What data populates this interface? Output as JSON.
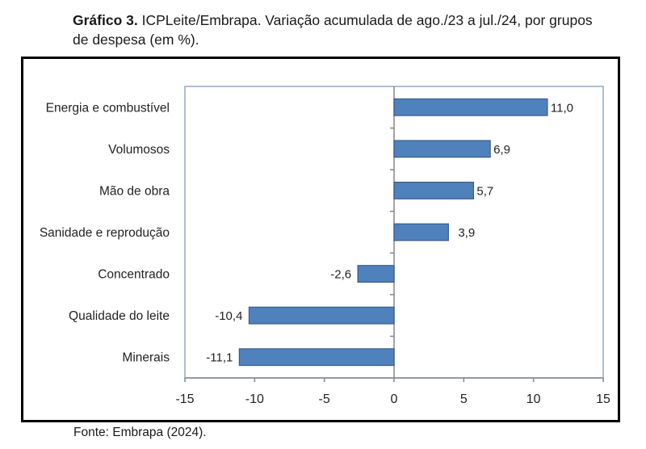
{
  "caption": {
    "bold": "Gráfico 3.",
    "text": " ICPLeite/Embrapa. Variação acumulada de ago./23 a jul./24, por grupos de despesa (em %)."
  },
  "source": "Fonte: Embrapa (2024).",
  "chart_data": {
    "type": "bar",
    "orientation": "horizontal",
    "title": "ICPLeite/Embrapa. Variação acumulada de ago./23 a jul./24, por grupos de despesa (em %)",
    "xlabel": "",
    "ylabel": "",
    "categories": [
      "Energia e combustível",
      "Volumosos",
      "Mão de obra",
      "Sanidade e reprodução",
      "Concentrado",
      "Qualidade do leite",
      "Minerais"
    ],
    "values": [
      11.0,
      6.9,
      5.7,
      3.9,
      -2.6,
      -10.4,
      -11.1
    ],
    "data_labels": [
      "11,0",
      "6,9",
      "5,7",
      "3,9",
      "-2,6",
      "-10,4",
      "-11,1"
    ],
    "xlim": [
      -15,
      15
    ],
    "xticks": [
      -15,
      -10,
      -5,
      0,
      5,
      10,
      15
    ],
    "xtick_labels": [
      "-15",
      "-10",
      "-5",
      "0",
      "5",
      "10",
      "15"
    ],
    "grid": false,
    "legend": "none",
    "colors": {
      "bar_fill": "#4f81bd",
      "bar_stroke": "#385d8a",
      "plot_border": "#8eaacb",
      "axis": "#868686"
    }
  }
}
